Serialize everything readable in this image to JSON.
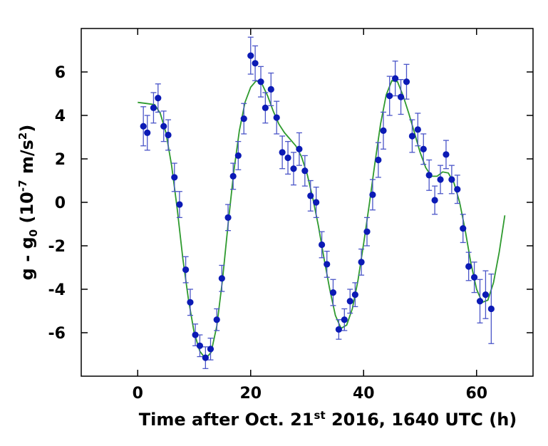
{
  "chart_data": {
    "type": "scatter",
    "xlabel": {
      "pre": "Time after Oct. 21",
      "sup": "st",
      "post": " 2016, 1640 UTC (h)"
    },
    "ylabel": {
      "a": "g - g",
      "sub": "0",
      "b": " (10",
      "sup1": "-7",
      "c": " m/s",
      "sup2": "2",
      "d": ")"
    },
    "xlim": [
      -10,
      70
    ],
    "ylim": [
      -8,
      8
    ],
    "xticks": [
      0,
      20,
      40,
      60
    ],
    "yticks": [
      -6,
      -4,
      -2,
      0,
      2,
      4,
      6
    ],
    "xtick_labels": [
      "0",
      "20",
      "40",
      "60"
    ],
    "ytick_labels": [
      "-6",
      "-4",
      "-2",
      "0",
      "2",
      "4",
      "6"
    ],
    "grid": false,
    "colors": {
      "points": "#0b1ab5",
      "errorbars": "#4a55c8",
      "fit": "#2e9a2e"
    },
    "series": [
      {
        "kind": "scatter-errorbar",
        "points": [
          {
            "x": 1.0,
            "y": 3.5,
            "err": 0.9
          },
          {
            "x": 1.7,
            "y": 3.2,
            "err": 0.8
          },
          {
            "x": 2.8,
            "y": 4.35,
            "err": 0.7
          },
          {
            "x": 3.6,
            "y": 4.8,
            "err": 0.65
          },
          {
            "x": 4.6,
            "y": 3.5,
            "err": 0.7
          },
          {
            "x": 5.4,
            "y": 3.1,
            "err": 0.7
          },
          {
            "x": 6.5,
            "y": 1.15,
            "err": 0.65
          },
          {
            "x": 7.4,
            "y": -0.1,
            "err": 0.6
          },
          {
            "x": 8.5,
            "y": -3.1,
            "err": 0.6
          },
          {
            "x": 9.3,
            "y": -4.6,
            "err": 0.6
          },
          {
            "x": 10.2,
            "y": -6.1,
            "err": 0.5
          },
          {
            "x": 11.0,
            "y": -6.6,
            "err": 0.5
          },
          {
            "x": 12.0,
            "y": -7.15,
            "err": 0.5
          },
          {
            "x": 12.9,
            "y": -6.75,
            "err": 0.5
          },
          {
            "x": 14.0,
            "y": -5.4,
            "err": 0.5
          },
          {
            "x": 14.9,
            "y": -3.5,
            "err": 0.6
          },
          {
            "x": 16.0,
            "y": -0.7,
            "err": 0.6
          },
          {
            "x": 16.9,
            "y": 1.2,
            "err": 0.6
          },
          {
            "x": 17.8,
            "y": 2.15,
            "err": 0.65
          },
          {
            "x": 18.8,
            "y": 3.85,
            "err": 0.7
          },
          {
            "x": 20.0,
            "y": 6.75,
            "err": 0.85
          },
          {
            "x": 20.8,
            "y": 6.4,
            "err": 0.8
          },
          {
            "x": 21.8,
            "y": 5.55,
            "err": 0.7
          },
          {
            "x": 22.6,
            "y": 4.35,
            "err": 0.7
          },
          {
            "x": 23.6,
            "y": 5.2,
            "err": 0.75
          },
          {
            "x": 24.6,
            "y": 3.9,
            "err": 0.75
          },
          {
            "x": 25.6,
            "y": 2.3,
            "err": 0.75
          },
          {
            "x": 26.6,
            "y": 2.05,
            "err": 0.75
          },
          {
            "x": 27.6,
            "y": 1.55,
            "err": 0.75
          },
          {
            "x": 28.6,
            "y": 2.45,
            "err": 0.75
          },
          {
            "x": 29.6,
            "y": 1.45,
            "err": 0.7
          },
          {
            "x": 30.6,
            "y": 0.3,
            "err": 0.7
          },
          {
            "x": 31.6,
            "y": 0.0,
            "err": 0.7
          },
          {
            "x": 32.6,
            "y": -1.95,
            "err": 0.6
          },
          {
            "x": 33.5,
            "y": -2.85,
            "err": 0.6
          },
          {
            "x": 34.6,
            "y": -4.15,
            "err": 0.6
          },
          {
            "x": 35.6,
            "y": -5.85,
            "err": 0.45
          },
          {
            "x": 36.6,
            "y": -5.4,
            "err": 0.5
          },
          {
            "x": 37.6,
            "y": -4.55,
            "err": 0.55
          },
          {
            "x": 38.5,
            "y": -4.25,
            "err": 0.55
          },
          {
            "x": 39.6,
            "y": -2.75,
            "err": 0.6
          },
          {
            "x": 40.6,
            "y": -1.35,
            "err": 0.65
          },
          {
            "x": 41.6,
            "y": 0.35,
            "err": 0.7
          },
          {
            "x": 42.6,
            "y": 1.95,
            "err": 0.8
          },
          {
            "x": 43.5,
            "y": 3.3,
            "err": 0.85
          },
          {
            "x": 44.6,
            "y": 4.9,
            "err": 0.9
          },
          {
            "x": 45.6,
            "y": 5.7,
            "err": 0.8
          },
          {
            "x": 46.6,
            "y": 4.85,
            "err": 0.8
          },
          {
            "x": 47.6,
            "y": 5.55,
            "err": 0.8
          },
          {
            "x": 48.6,
            "y": 3.05,
            "err": 0.75
          },
          {
            "x": 49.6,
            "y": 3.35,
            "err": 0.75
          },
          {
            "x": 50.6,
            "y": 2.45,
            "err": 0.7
          },
          {
            "x": 51.6,
            "y": 1.25,
            "err": 0.7
          },
          {
            "x": 52.6,
            "y": 0.1,
            "err": 0.65
          },
          {
            "x": 53.6,
            "y": 1.05,
            "err": 0.65
          },
          {
            "x": 54.6,
            "y": 2.2,
            "err": 0.65
          },
          {
            "x": 55.6,
            "y": 1.05,
            "err": 0.65
          },
          {
            "x": 56.6,
            "y": 0.6,
            "err": 0.65
          },
          {
            "x": 57.6,
            "y": -1.2,
            "err": 0.65
          },
          {
            "x": 58.6,
            "y": -2.95,
            "err": 0.65
          },
          {
            "x": 59.6,
            "y": -3.45,
            "err": 0.7
          },
          {
            "x": 60.6,
            "y": -4.55,
            "err": 1.0
          },
          {
            "x": 61.6,
            "y": -4.25,
            "err": 1.1
          },
          {
            "x": 62.6,
            "y": -4.9,
            "err": 1.6
          }
        ]
      },
      {
        "kind": "line",
        "points": [
          [
            0,
            4.6
          ],
          [
            1.5,
            4.55
          ],
          [
            3.0,
            4.5
          ],
          [
            4.0,
            4.1
          ],
          [
            5.0,
            3.2
          ],
          [
            6.0,
            1.7
          ],
          [
            7.0,
            -0.3
          ],
          [
            8.0,
            -2.6
          ],
          [
            9.0,
            -4.5
          ],
          [
            10.0,
            -6.0
          ],
          [
            11.0,
            -6.85
          ],
          [
            12.0,
            -7.2
          ],
          [
            13.0,
            -6.9
          ],
          [
            14.0,
            -5.7
          ],
          [
            15.0,
            -3.6
          ],
          [
            16.0,
            -1.0
          ],
          [
            17.0,
            1.4
          ],
          [
            18.0,
            3.3
          ],
          [
            19.0,
            4.6
          ],
          [
            20.0,
            5.3
          ],
          [
            21.0,
            5.6
          ],
          [
            22.0,
            5.45
          ],
          [
            23.0,
            4.9
          ],
          [
            24.0,
            4.2
          ],
          [
            25.0,
            3.6
          ],
          [
            26.0,
            3.2
          ],
          [
            27.0,
            2.9
          ],
          [
            28.0,
            2.6
          ],
          [
            29.0,
            2.1
          ],
          [
            30.0,
            1.3
          ],
          [
            31.0,
            0.2
          ],
          [
            32.0,
            -1.1
          ],
          [
            33.0,
            -2.6
          ],
          [
            34.0,
            -4.0
          ],
          [
            35.0,
            -5.2
          ],
          [
            36.0,
            -5.8
          ],
          [
            37.0,
            -5.65
          ],
          [
            38.0,
            -4.9
          ],
          [
            39.0,
            -3.6
          ],
          [
            40.0,
            -1.9
          ],
          [
            41.0,
            -0.1
          ],
          [
            42.0,
            1.8
          ],
          [
            43.0,
            3.6
          ],
          [
            44.0,
            4.95
          ],
          [
            45.0,
            5.6
          ],
          [
            46.0,
            5.55
          ],
          [
            47.0,
            4.9
          ],
          [
            48.0,
            4.1
          ],
          [
            49.0,
            3.2
          ],
          [
            50.0,
            2.3
          ],
          [
            51.0,
            1.6
          ],
          [
            52.0,
            1.2
          ],
          [
            53.0,
            1.2
          ],
          [
            54.0,
            1.4
          ],
          [
            55.0,
            1.35
          ],
          [
            56.0,
            0.9
          ],
          [
            57.0,
            0.0
          ],
          [
            58.0,
            -1.3
          ],
          [
            59.0,
            -2.8
          ],
          [
            60.0,
            -4.0
          ],
          [
            61.0,
            -4.6
          ],
          [
            62.0,
            -4.5
          ],
          [
            63.0,
            -3.7
          ],
          [
            64.0,
            -2.3
          ],
          [
            65.0,
            -0.6
          ]
        ]
      }
    ]
  }
}
